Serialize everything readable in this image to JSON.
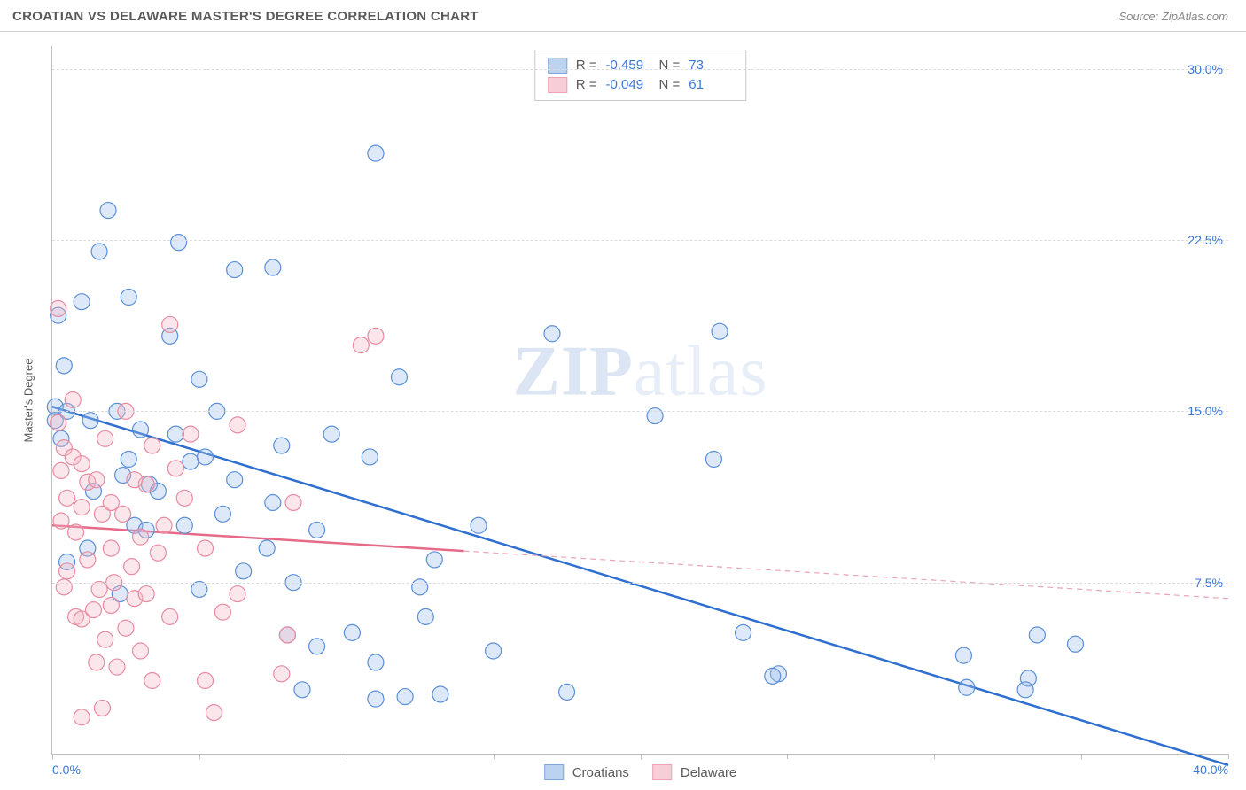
{
  "header": {
    "title": "CROATIAN VS DELAWARE MASTER'S DEGREE CORRELATION CHART",
    "source_prefix": "Source: ",
    "source_name": "ZipAtlas.com"
  },
  "watermark": {
    "bold": "ZIP",
    "light": "atlas"
  },
  "chart": {
    "type": "scatter",
    "ylabel": "Master's Degree",
    "background_color": "#ffffff",
    "grid_color": "#dcdcdc",
    "axis_color": "#bfbfbf",
    "tick_label_color": "#3b78d8",
    "label_color": "#5a5a5a",
    "title_fontsize": 15,
    "label_fontsize": 13,
    "tick_fontsize": 14,
    "xlim": [
      0,
      40
    ],
    "ylim": [
      0,
      31
    ],
    "x_ticks": [
      0,
      5,
      10,
      15,
      20,
      25,
      30,
      35,
      40
    ],
    "x_tick_labels": {
      "0": "0.0%",
      "40": "40.0%"
    },
    "y_ticks": [
      7.5,
      15.0,
      22.5,
      30.0
    ],
    "y_tick_labels": [
      "7.5%",
      "15.0%",
      "22.5%",
      "30.0%"
    ],
    "marker_radius": 9,
    "marker_stroke_width": 1.2,
    "marker_fill_opacity": 0.35,
    "trend_line_width": 2.5,
    "trend_dash_width": 1.2,
    "series": [
      {
        "name": "Croatians",
        "color_fill": "#9fc0ea",
        "color_stroke": "#5a8fd6",
        "swatch_fill": "#bcd3f0",
        "swatch_border": "#7ea8dd",
        "R": "-0.459",
        "N": "73",
        "trend": {
          "x1": 0,
          "y1": 15.2,
          "x2": 40,
          "y2": -0.5,
          "color": "#2f6fd0",
          "dash_color": "#2f6fd0"
        },
        "points": [
          [
            0.1,
            15.2
          ],
          [
            0.1,
            14.6
          ],
          [
            0.2,
            19.2
          ],
          [
            0.3,
            13.8
          ],
          [
            0.4,
            17.0
          ],
          [
            0.5,
            8.4
          ],
          [
            0.5,
            15.0
          ],
          [
            1.0,
            19.8
          ],
          [
            1.2,
            9.0
          ],
          [
            1.3,
            14.6
          ],
          [
            1.4,
            11.5
          ],
          [
            1.6,
            22.0
          ],
          [
            1.9,
            23.8
          ],
          [
            2.2,
            15.0
          ],
          [
            2.3,
            7.0
          ],
          [
            2.4,
            12.2
          ],
          [
            2.6,
            12.9
          ],
          [
            2.6,
            20.0
          ],
          [
            2.8,
            10.0
          ],
          [
            3.0,
            14.2
          ],
          [
            3.2,
            9.8
          ],
          [
            3.3,
            11.8
          ],
          [
            3.6,
            11.5
          ],
          [
            4.0,
            18.3
          ],
          [
            4.2,
            14.0
          ],
          [
            4.3,
            22.4
          ],
          [
            4.5,
            10.0
          ],
          [
            4.7,
            12.8
          ],
          [
            5.0,
            16.4
          ],
          [
            5.0,
            7.2
          ],
          [
            5.2,
            13.0
          ],
          [
            5.6,
            15.0
          ],
          [
            5.8,
            10.5
          ],
          [
            6.2,
            21.2
          ],
          [
            6.2,
            12.0
          ],
          [
            6.5,
            8.0
          ],
          [
            7.3,
            9.0
          ],
          [
            7.5,
            21.3
          ],
          [
            7.5,
            11.0
          ],
          [
            7.8,
            13.5
          ],
          [
            8.0,
            5.2
          ],
          [
            8.2,
            7.5
          ],
          [
            8.5,
            2.8
          ],
          [
            9.0,
            9.8
          ],
          [
            9.0,
            4.7
          ],
          [
            9.5,
            14.0
          ],
          [
            10.2,
            5.3
          ],
          [
            10.8,
            13.0
          ],
          [
            11.0,
            26.3
          ],
          [
            11.0,
            4.0
          ],
          [
            11.0,
            2.4
          ],
          [
            11.8,
            16.5
          ],
          [
            12.0,
            2.5
          ],
          [
            12.5,
            7.3
          ],
          [
            12.7,
            6.0
          ],
          [
            13.0,
            8.5
          ],
          [
            13.2,
            2.6
          ],
          [
            14.5,
            10.0
          ],
          [
            15.0,
            4.5
          ],
          [
            17.0,
            18.4
          ],
          [
            17.5,
            2.7
          ],
          [
            20.5,
            14.8
          ],
          [
            22.5,
            12.9
          ],
          [
            22.7,
            18.5
          ],
          [
            23.5,
            5.3
          ],
          [
            24.7,
            3.5
          ],
          [
            31.0,
            4.3
          ],
          [
            33.2,
            3.3
          ],
          [
            33.5,
            5.2
          ],
          [
            34.8,
            4.8
          ],
          [
            31.1,
            2.9
          ],
          [
            33.1,
            2.8
          ],
          [
            24.5,
            3.4
          ]
        ]
      },
      {
        "name": "Delaware",
        "color_fill": "#f4b9c6",
        "color_stroke": "#e88ba1",
        "swatch_fill": "#f7cdd7",
        "swatch_border": "#eda3b5",
        "R": "-0.049",
        "N": "61",
        "trend": {
          "x1": 0,
          "y1": 10.0,
          "x2": 40,
          "y2": 6.8,
          "solid_until_x": 14,
          "color": "#e56b89",
          "dash_color": "#e9a3b4"
        },
        "points": [
          [
            0.2,
            14.5
          ],
          [
            0.2,
            19.5
          ],
          [
            0.3,
            10.2
          ],
          [
            0.3,
            12.4
          ],
          [
            0.4,
            13.4
          ],
          [
            0.4,
            7.3
          ],
          [
            0.5,
            11.2
          ],
          [
            0.5,
            8.0
          ],
          [
            0.7,
            13.0
          ],
          [
            0.7,
            15.5
          ],
          [
            0.8,
            6.0
          ],
          [
            0.8,
            9.7
          ],
          [
            1.0,
            12.7
          ],
          [
            1.0,
            5.9
          ],
          [
            1.0,
            10.8
          ],
          [
            1.0,
            1.6
          ],
          [
            1.2,
            11.9
          ],
          [
            1.2,
            8.5
          ],
          [
            1.4,
            6.3
          ],
          [
            1.5,
            12.0
          ],
          [
            1.5,
            4.0
          ],
          [
            1.6,
            7.2
          ],
          [
            1.7,
            10.5
          ],
          [
            1.7,
            2.0
          ],
          [
            1.8,
            13.8
          ],
          [
            1.8,
            5.0
          ],
          [
            2.0,
            9.0
          ],
          [
            2.0,
            6.5
          ],
          [
            2.0,
            11.0
          ],
          [
            2.1,
            7.5
          ],
          [
            2.2,
            3.8
          ],
          [
            2.4,
            10.5
          ],
          [
            2.5,
            15.0
          ],
          [
            2.5,
            5.5
          ],
          [
            2.7,
            8.2
          ],
          [
            2.8,
            12.0
          ],
          [
            2.8,
            6.8
          ],
          [
            3.0,
            4.5
          ],
          [
            3.0,
            9.5
          ],
          [
            3.2,
            11.8
          ],
          [
            3.2,
            7.0
          ],
          [
            3.4,
            13.5
          ],
          [
            3.4,
            3.2
          ],
          [
            3.6,
            8.8
          ],
          [
            3.8,
            10.0
          ],
          [
            4.0,
            6.0
          ],
          [
            4.0,
            18.8
          ],
          [
            4.5,
            11.2
          ],
          [
            4.7,
            14.0
          ],
          [
            5.2,
            9.0
          ],
          [
            5.2,
            3.2
          ],
          [
            5.5,
            1.8
          ],
          [
            6.3,
            7.0
          ],
          [
            6.3,
            14.4
          ],
          [
            7.8,
            3.5
          ],
          [
            8.0,
            5.2
          ],
          [
            8.2,
            11.0
          ],
          [
            10.5,
            17.9
          ],
          [
            11.0,
            18.3
          ],
          [
            5.8,
            6.2
          ],
          [
            4.2,
            12.5
          ]
        ]
      }
    ],
    "legend_top": {
      "bg": "#ffffff",
      "border": "#c9c9c9"
    },
    "legend_bottom_items": [
      {
        "label": "Croatians",
        "swatch_fill": "#bcd3f0",
        "swatch_border": "#7ea8dd"
      },
      {
        "label": "Delaware",
        "swatch_fill": "#f7cdd7",
        "swatch_border": "#eda3b5"
      }
    ]
  }
}
